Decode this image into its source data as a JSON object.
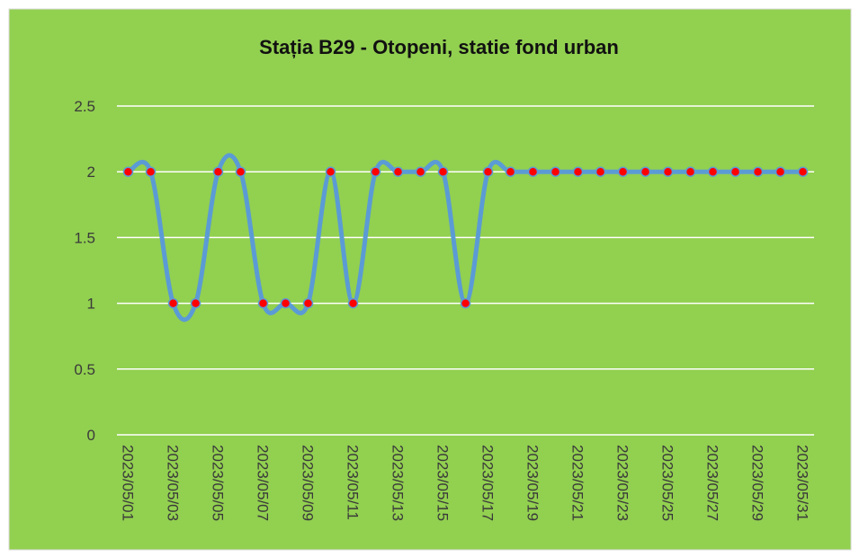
{
  "chart_data": {
    "type": "line",
    "title": "Stația B29 - Otopeni, statie fond urban",
    "categories": [
      "2023/05/01",
      null,
      "2023/05/03",
      null,
      "2023/05/05",
      null,
      "2023/05/07",
      null,
      "2023/05/09",
      null,
      "2023/05/11",
      null,
      "2023/05/13",
      null,
      "2023/05/15",
      null,
      "2023/05/17",
      null,
      "2023/05/19",
      null,
      "2023/05/21",
      null,
      "2023/05/23",
      null,
      "2023/05/25",
      null,
      "2023/05/27",
      null,
      "2023/05/29",
      null,
      "2023/05/31"
    ],
    "values": [
      2,
      2,
      1,
      1,
      2,
      2,
      1,
      1,
      1,
      2,
      1,
      2,
      2,
      2,
      2,
      1,
      2,
      2,
      2,
      2,
      2,
      2,
      2,
      2,
      2,
      2,
      2,
      2,
      2,
      2,
      2
    ],
    "color": "#5b9bd5",
    "marker_color": "#ff0000",
    "background": "#92d050",
    "ylim": [
      0,
      2.5
    ],
    "yticks": [
      0,
      0.5,
      1,
      1.5,
      2,
      2.5
    ],
    "grid": true,
    "smooth": true
  }
}
